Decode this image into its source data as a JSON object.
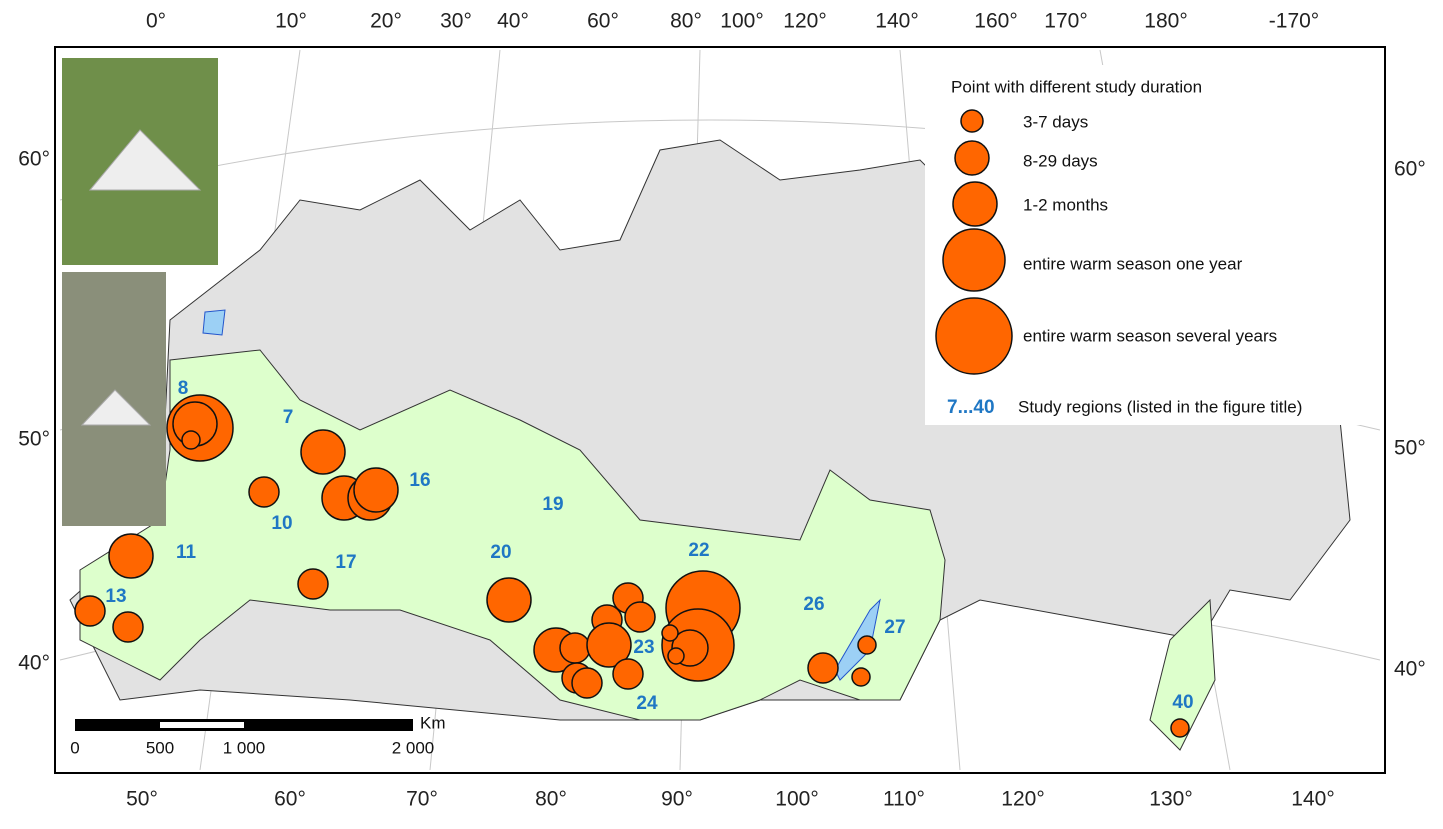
{
  "axes": {
    "top": [
      "0°",
      "10°",
      "20°",
      "30°",
      "40°",
      "60°",
      "80°",
      "100°",
      "120°",
      "140°",
      "160°",
      "170°",
      "180°",
      "-170°"
    ],
    "left": [
      "60°",
      "50°",
      "40°"
    ],
    "right": [
      "60°",
      "50°",
      "40°"
    ],
    "bottom": [
      "50°",
      "60°",
      "70°",
      "80°",
      "90°",
      "100°",
      "110°",
      "120°",
      "130°",
      "140°"
    ]
  },
  "legend": {
    "title": "Point with different study duration",
    "entries": [
      "3-7 days",
      "8-29 days",
      "1-2 months",
      "entire warm season one year",
      "entire warm season several years"
    ],
    "regions_symbol": "7...40",
    "regions_text": "Study regions (listed in the figure title)"
  },
  "regions": [
    "8",
    "7",
    "16",
    "10",
    "19",
    "11",
    "17",
    "20",
    "22",
    "13",
    "26",
    "27",
    "23",
    "24",
    "40"
  ],
  "scale_bar": {
    "unit": "Km",
    "labels": [
      "0",
      "500",
      "1 000",
      "2 000"
    ]
  }
}
